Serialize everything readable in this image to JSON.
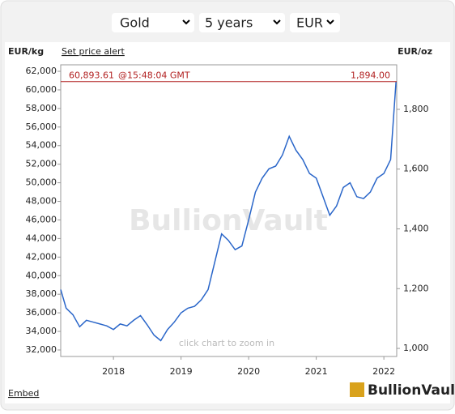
{
  "controls": [
    "Gold",
    "5 years",
    "EUR"
  ],
  "chart_data": {
    "type": "line",
    "y_label": "EUR/kg",
    "y2_label": "EUR/oz",
    "price_alert": "Set price alert",
    "watermark": "BullionVault",
    "hint": "click chart to zoom in",
    "x": [
      2017.22,
      2017.3,
      2017.4,
      2017.5,
      2017.6,
      2017.7,
      2017.8,
      2017.9,
      2018.0,
      2018.1,
      2018.2,
      2018.3,
      2018.4,
      2018.5,
      2018.6,
      2018.7,
      2018.8,
      2018.9,
      2019.0,
      2019.1,
      2019.2,
      2019.3,
      2019.4,
      2019.5,
      2019.6,
      2019.7,
      2019.8,
      2019.9,
      2020.0,
      2020.1,
      2020.2,
      2020.3,
      2020.4,
      2020.5,
      2020.6,
      2020.7,
      2020.8,
      2020.9,
      2021.0,
      2021.1,
      2021.2,
      2021.3,
      2021.4,
      2021.5,
      2021.6,
      2021.7,
      2021.8,
      2021.9,
      2022.0,
      2022.1,
      2022.18
    ],
    "series": [
      {
        "color": "#2a66c9",
        "values": [
          38500,
          36500,
          35800,
          34500,
          35200,
          35000,
          34800,
          34600,
          34200,
          34800,
          34600,
          35200,
          35700,
          34700,
          33600,
          33000,
          34200,
          35000,
          36000,
          36500,
          36700,
          37400,
          38500,
          41500,
          44500,
          43800,
          42800,
          43200,
          46000,
          49000,
          50500,
          51500,
          51800,
          53000,
          55000,
          53500,
          52500,
          51000,
          50500,
          48500,
          46500,
          47500,
          49500,
          50000,
          48500,
          48300,
          49000,
          50500,
          51000,
          52500,
          60900
        ]
      }
    ],
    "xlim": [
      2017.22,
      2022.19
    ],
    "xticks": [
      2018,
      2019,
      2020,
      2021,
      2022
    ],
    "ylim": [
      31300,
      62700
    ],
    "yticks": [
      {
        "value": 32000,
        "label": "32,000"
      },
      {
        "value": 34000,
        "label": "34,000"
      },
      {
        "value": 36000,
        "label": "36,000"
      },
      {
        "value": 38000,
        "label": "38,000"
      },
      {
        "value": 40000,
        "label": "40,000"
      },
      {
        "value": 42000,
        "label": "42,000"
      },
      {
        "value": 44000,
        "label": "44,000"
      },
      {
        "value": 46000,
        "label": "46,000"
      },
      {
        "value": 48000,
        "label": "48,000"
      },
      {
        "value": 50000,
        "label": "50,000"
      },
      {
        "value": 52000,
        "label": "52,000"
      },
      {
        "value": 54000,
        "label": "54,000"
      },
      {
        "value": 56000,
        "label": "56,000"
      },
      {
        "value": 58000,
        "label": "58,000"
      },
      {
        "value": 60000,
        "label": "60,000"
      },
      {
        "value": 62000,
        "label": "62,000"
      }
    ],
    "y2lim": [
      973,
      1949
    ],
    "y2ticks": [
      {
        "value": 1000,
        "label": "1,000"
      },
      {
        "value": 1200,
        "label": "1,200"
      },
      {
        "value": 1400,
        "label": "1,400"
      },
      {
        "value": 1600,
        "label": "1,600"
      },
      {
        "value": 1800,
        "label": "1,800"
      }
    ],
    "current": {
      "value": 60893.61,
      "value_label": "60,893.61",
      "time": "@15:48:04 GMT",
      "y2_value": 1894,
      "y2_label": "1,894.00",
      "color": "#b22222"
    }
  },
  "footer": {
    "embed": "Embed",
    "logo": "BullionVault"
  }
}
